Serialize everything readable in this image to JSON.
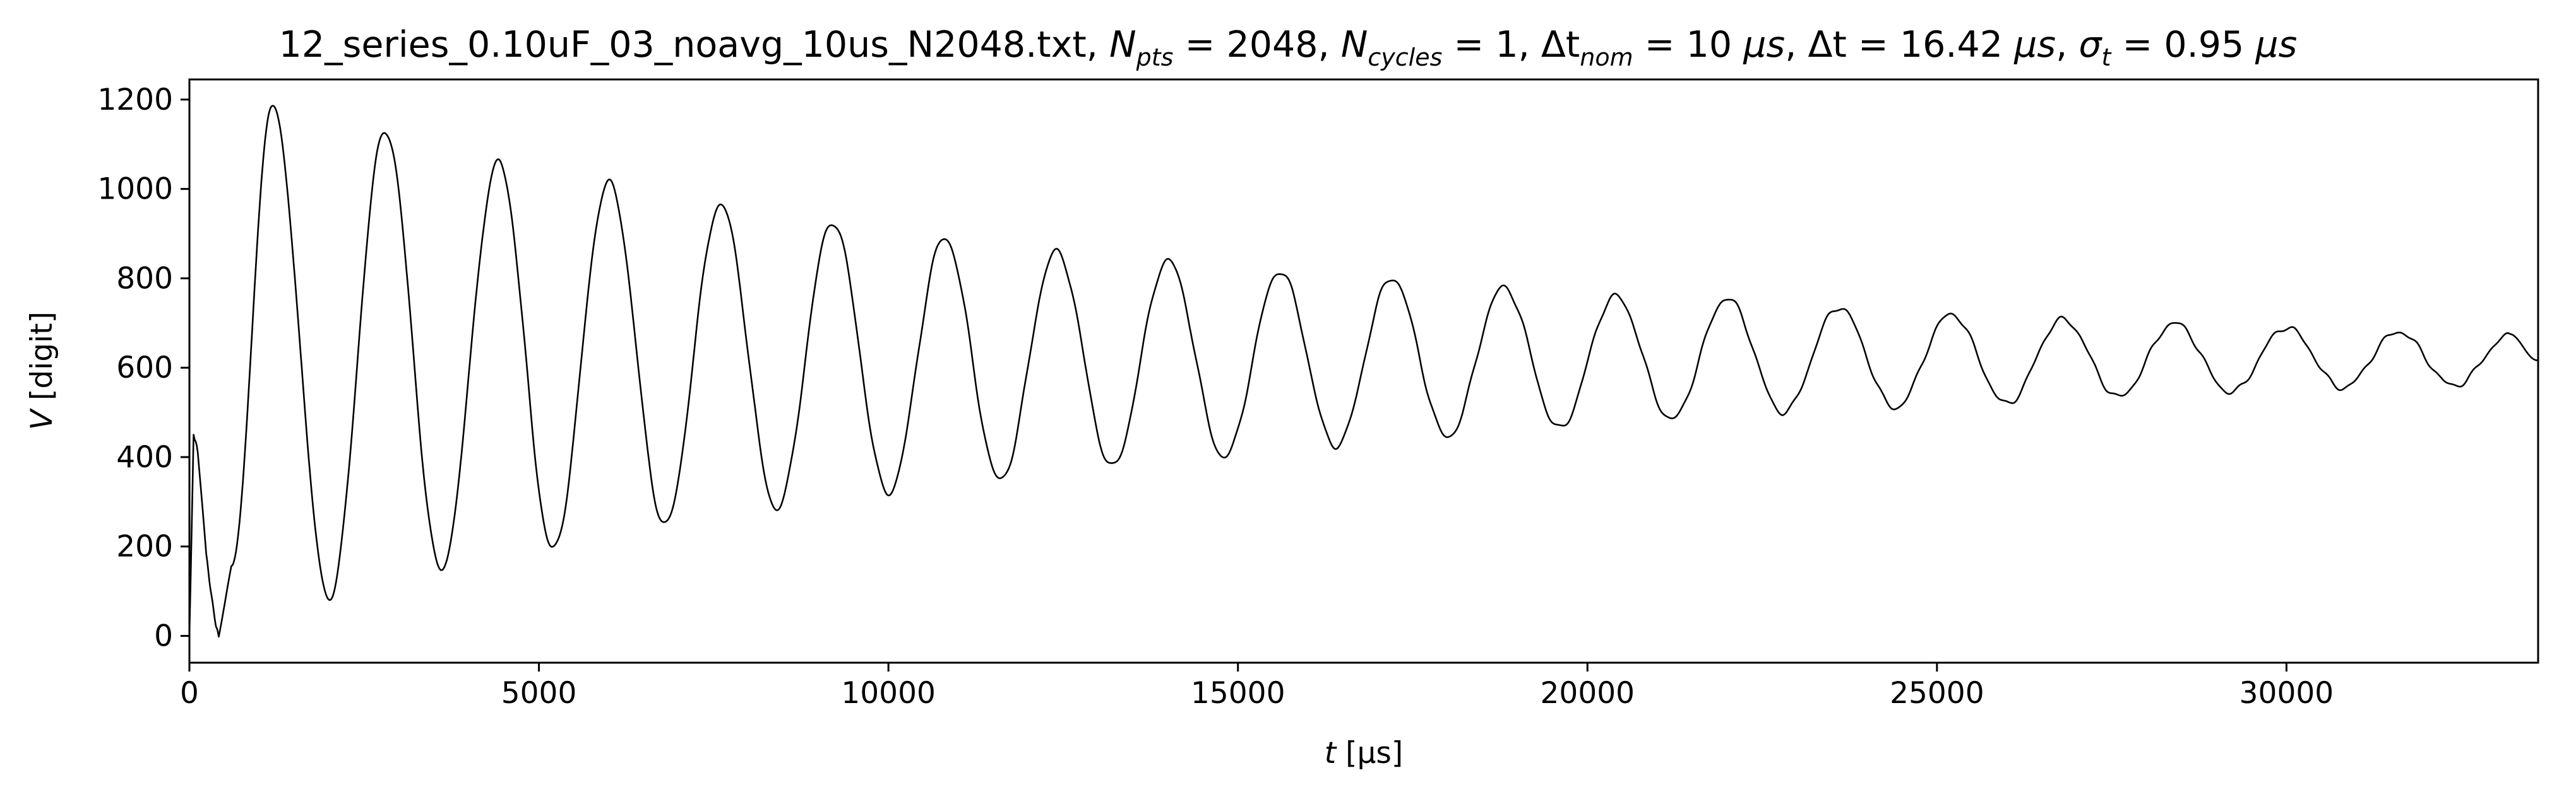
{
  "chart_data": {
    "type": "line",
    "title": {
      "prefix": "12_series_0.10uF_03_noavg_10us_N2048.txt, ",
      "npts_symbol": "N",
      "npts_sub": "pts",
      "npts_value": " = 2048, ",
      "ncycles_symbol": "N",
      "ncycles_sub": "cycles",
      "ncycles_value": " = 1, ",
      "dtnom_symbol": "Δt",
      "dtnom_sub": "nom",
      "dtnom_value": " = 10 ",
      "dtnom_unit": "μs",
      "sep1": ", ",
      "dt_symbol": "Δt",
      "dt_value": " = 16.42 ",
      "dt_unit": "μs",
      "sep2": ", ",
      "sigma_symbol": "σ",
      "sigma_sub": "t",
      "sigma_value": " = 0.95 ",
      "sigma_unit": "μs"
    },
    "xlabel": {
      "symbol": "t",
      "unit": " [μs]"
    },
    "ylabel": {
      "symbol": "V",
      "unit": " [digit]"
    },
    "xlim": [
      0,
      33600
    ],
    "ylim": [
      -60,
      1245
    ],
    "xticks": [
      0,
      5000,
      10000,
      15000,
      20000,
      25000,
      30000
    ],
    "yticks": [
      0,
      200,
      400,
      600,
      800,
      1000,
      1200
    ],
    "grid": false,
    "line_color": "#000000",
    "signal": {
      "description_only": false,
      "period": 1600,
      "offset_final": 610,
      "start_jump": [
        [
          0,
          0
        ],
        [
          60,
          450
        ],
        [
          120,
          410
        ],
        [
          240,
          180
        ],
        [
          380,
          20
        ],
        [
          420,
          5
        ],
        [
          600,
          150
        ]
      ],
      "peaks": [
        [
          1180,
          1185
        ],
        [
          2800,
          1130
        ],
        [
          4420,
          1060
        ],
        [
          6000,
          1015
        ],
        [
          7600,
          965
        ],
        [
          9200,
          925
        ],
        [
          10800,
          890
        ],
        [
          12400,
          860
        ],
        [
          14000,
          840
        ],
        [
          15600,
          815
        ],
        [
          17200,
          800
        ],
        [
          18800,
          780
        ],
        [
          20400,
          760
        ],
        [
          22000,
          755
        ],
        [
          23600,
          735
        ],
        [
          25200,
          720
        ],
        [
          26800,
          708
        ],
        [
          28400,
          700
        ],
        [
          30000,
          690
        ],
        [
          31600,
          680
        ],
        [
          33200,
          672
        ]
      ],
      "troughs": [
        [
          2000,
          85
        ],
        [
          3600,
          150
        ],
        [
          5200,
          195
        ],
        [
          6800,
          250
        ],
        [
          8400,
          285
        ],
        [
          10000,
          320
        ],
        [
          11600,
          350
        ],
        [
          13200,
          380
        ],
        [
          14800,
          400
        ],
        [
          16400,
          425
        ],
        [
          18000,
          445
        ],
        [
          19600,
          465
        ],
        [
          21200,
          485
        ],
        [
          22800,
          500
        ],
        [
          24400,
          510
        ],
        [
          26000,
          520
        ],
        [
          27600,
          535
        ],
        [
          29200,
          545
        ],
        [
          30800,
          555
        ],
        [
          32400,
          560
        ]
      ],
      "end": [
        33600,
        618
      ]
    }
  }
}
